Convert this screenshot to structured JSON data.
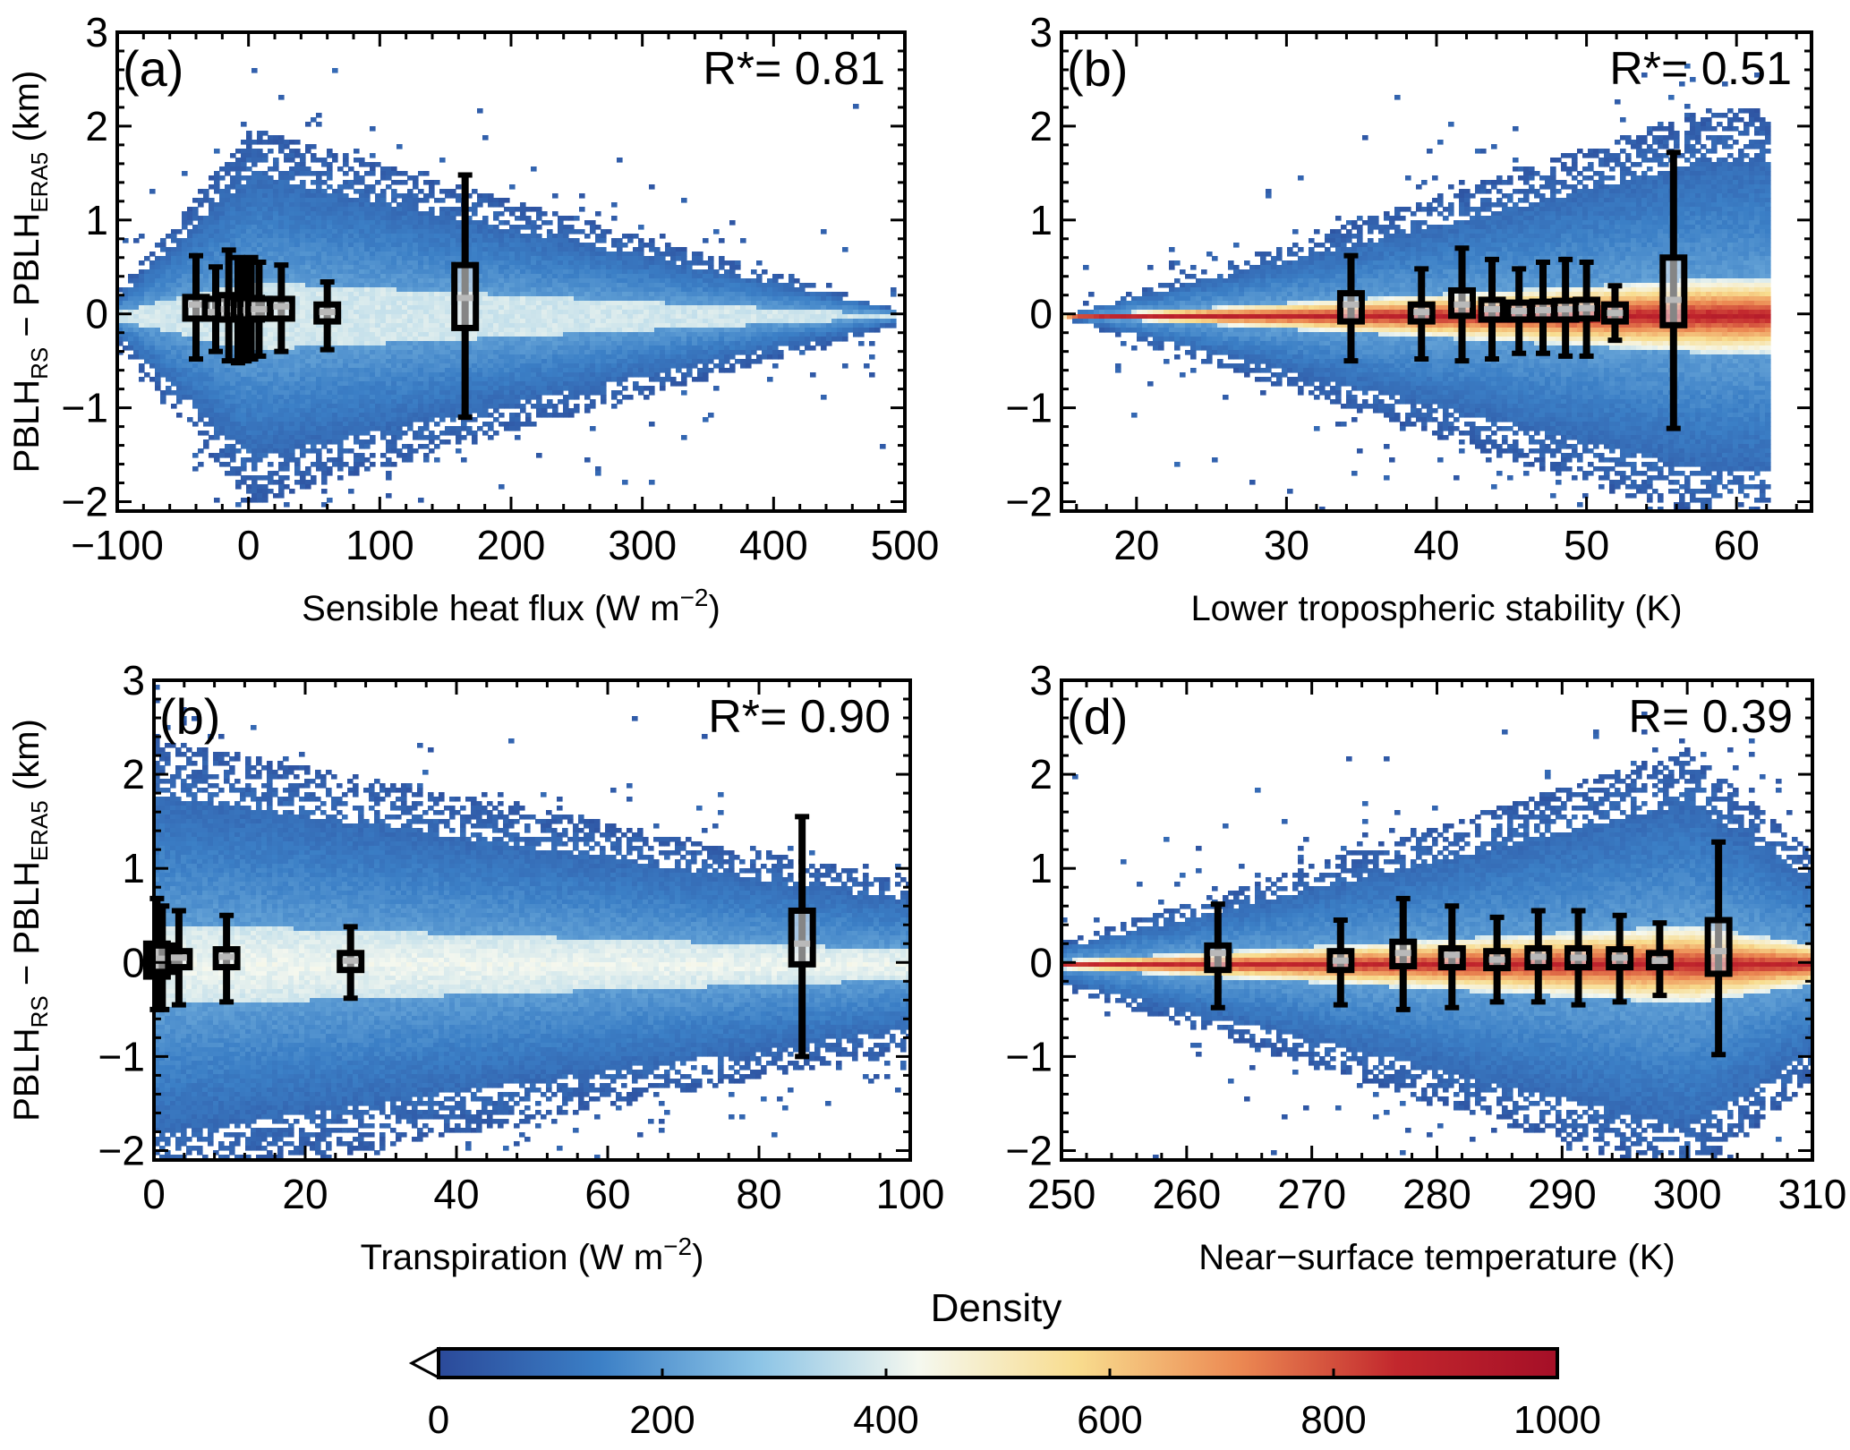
{
  "colorbar": {
    "title": "Density",
    "ticks": [
      "0",
      "200",
      "400",
      "600",
      "800",
      "1000"
    ],
    "range": [
      0,
      1000
    ],
    "extend": "min",
    "colors": [
      "#2b4a9a",
      "#3b7fc6",
      "#8cc4e6",
      "#f5f8ef",
      "#f8dc8e",
      "#ec8a53",
      "#c2272d",
      "#a50f27"
    ]
  },
  "box_style": {
    "box_color": "#000000",
    "median_color": "#b9b9b9"
  },
  "chart_data": [
    {
      "type": "heatmap",
      "panel": "(a)",
      "stat_label": "R*= 0.81",
      "xlabel_main": "Sensible heat flux (W m",
      "xlabel_sup": "−2",
      "xlabel_end": ")",
      "ylabel": {
        "pre": "PBLH",
        "sub1": "RS",
        "mid": " − PBLH",
        "sub2": "ERA5",
        "post": " (km)"
      },
      "xlim": [
        -100,
        500
      ],
      "ylim": [
        -2.1,
        3
      ],
      "xticks": [
        -100,
        0,
        100,
        200,
        300,
        400,
        500
      ],
      "xticklabels": [
        "−100",
        "0",
        "100",
        "200",
        "300",
        "400",
        "500"
      ],
      "yticks": [
        -2,
        -1,
        0,
        1,
        2,
        3
      ],
      "yticklabels": [
        "−2",
        "−1",
        "0",
        "1",
        "2",
        "3"
      ],
      "density_cloud": {
        "x_start": -100,
        "x_end": 490,
        "x_peak_spread": 0,
        "spread_start": 0.3,
        "spread_peak": 2.0,
        "spread_end": 0.1,
        "core_level": 380
      },
      "boxes": [
        {
          "x": -40,
          "q1": -0.05,
          "median": 0.1,
          "q3": 0.18,
          "whisker_low": -0.48,
          "whisker_high": 0.62
        },
        {
          "x": -25,
          "q1": -0.05,
          "median": 0.02,
          "q3": 0.16,
          "whisker_low": -0.4,
          "whisker_high": 0.5
        },
        {
          "x": -15,
          "q1": -0.06,
          "median": 0.05,
          "q3": 0.2,
          "whisker_low": -0.5,
          "whisker_high": 0.68
        },
        {
          "x": -8,
          "q1": -0.06,
          "median": 0.05,
          "q3": 0.18,
          "whisker_low": -0.52,
          "whisker_high": 0.6
        },
        {
          "x": -3,
          "q1": -0.05,
          "median": 0.03,
          "q3": 0.16,
          "whisker_low": -0.5,
          "whisker_high": 0.55
        },
        {
          "x": 2,
          "q1": -0.06,
          "median": 0.04,
          "q3": 0.17,
          "whisker_low": -0.48,
          "whisker_high": 0.6
        },
        {
          "x": 8,
          "q1": -0.05,
          "median": 0.05,
          "q3": 0.16,
          "whisker_low": -0.45,
          "whisker_high": 0.55
        },
        {
          "x": 25,
          "q1": -0.05,
          "median": 0.08,
          "q3": 0.16,
          "whisker_low": -0.4,
          "whisker_high": 0.52
        },
        {
          "x": 60,
          "q1": -0.08,
          "median": 0.02,
          "q3": 0.1,
          "whisker_low": -0.38,
          "whisker_high": 0.34
        },
        {
          "x": 165,
          "q1": -0.15,
          "median": 0.17,
          "q3": 0.52,
          "whisker_low": -1.1,
          "whisker_high": 1.48
        }
      ]
    },
    {
      "type": "heatmap",
      "panel": "(b)",
      "stat_label": "R*= 0.51",
      "xlabel_main": "Lower tropospheric stability (K)",
      "xlabel_sup": "",
      "xlabel_end": "",
      "ylabel": null,
      "xlim": [
        15,
        65
      ],
      "ylim": [
        -2.1,
        3
      ],
      "xticks": [
        20,
        30,
        40,
        50,
        60
      ],
      "xticklabels": [
        "20",
        "30",
        "40",
        "50",
        "60"
      ],
      "yticks": [
        -2,
        -1,
        0,
        1,
        2,
        3
      ],
      "yticklabels": [
        "−2",
        "−1",
        "0",
        "1",
        "2",
        "3"
      ],
      "density_cloud": {
        "x_start": 15,
        "x_end": 62,
        "x_peak_spread": 58,
        "spread_start": 0.02,
        "spread_peak": 2.2,
        "spread_end": 2.2,
        "core_level": 900
      },
      "boxes": [
        {
          "x": 34.3,
          "q1": -0.08,
          "median": 0.1,
          "q3": 0.22,
          "whisker_low": -0.5,
          "whisker_high": 0.62
        },
        {
          "x": 39,
          "q1": -0.08,
          "median": 0.02,
          "q3": 0.1,
          "whisker_low": -0.48,
          "whisker_high": 0.48
        },
        {
          "x": 41.7,
          "q1": -0.02,
          "median": 0.1,
          "q3": 0.25,
          "whisker_low": -0.5,
          "whisker_high": 0.7
        },
        {
          "x": 43.7,
          "q1": -0.06,
          "median": 0.05,
          "q3": 0.15,
          "whisker_low": -0.48,
          "whisker_high": 0.58
        },
        {
          "x": 45.5,
          "q1": -0.06,
          "median": 0.03,
          "q3": 0.12,
          "whisker_low": -0.42,
          "whisker_high": 0.48
        },
        {
          "x": 47.1,
          "q1": -0.06,
          "median": 0.04,
          "q3": 0.13,
          "whisker_low": -0.42,
          "whisker_high": 0.55
        },
        {
          "x": 48.6,
          "q1": -0.06,
          "median": 0.05,
          "q3": 0.14,
          "whisker_low": -0.45,
          "whisker_high": 0.58
        },
        {
          "x": 50,
          "q1": -0.05,
          "median": 0.06,
          "q3": 0.15,
          "whisker_low": -0.45,
          "whisker_high": 0.55
        },
        {
          "x": 51.9,
          "q1": -0.08,
          "median": 0.01,
          "q3": 0.1,
          "whisker_low": -0.28,
          "whisker_high": 0.3
        },
        {
          "x": 55.8,
          "q1": -0.12,
          "median": 0.15,
          "q3": 0.6,
          "whisker_low": -1.22,
          "whisker_high": 1.72
        }
      ]
    },
    {
      "type": "heatmap",
      "panel": "(b)",
      "stat_label": "R*= 0.90",
      "xlabel_main": "Transpiration (W m",
      "xlabel_sup": "−2",
      "xlabel_end": ")",
      "ylabel": {
        "pre": "PBLH",
        "sub1": "RS",
        "mid": " − PBLH",
        "sub2": "ERA5",
        "post": " (km)"
      },
      "xlim": [
        0,
        100
      ],
      "ylim": [
        -2.1,
        3
      ],
      "xticks": [
        0,
        20,
        40,
        60,
        80,
        100
      ],
      "xticklabels": [
        "0",
        "20",
        "40",
        "60",
        "80",
        "100"
      ],
      "yticks": [
        -2,
        -1,
        0,
        1,
        2,
        3
      ],
      "yticklabels": [
        "−2",
        "−1",
        "0",
        "1",
        "2",
        "3"
      ],
      "density_cloud": {
        "x_start": 0,
        "x_end": 100,
        "x_peak_spread": 0,
        "spread_start": 2.4,
        "spread_peak": 2.4,
        "spread_end": 0.9,
        "core_level": 420
      },
      "boxes": [
        {
          "x": 0.4,
          "q1": -0.15,
          "median": 0.03,
          "q3": 0.2,
          "whisker_low": -0.5,
          "whisker_high": 0.68
        },
        {
          "x": 1.1,
          "q1": -0.1,
          "median": 0.04,
          "q3": 0.18,
          "whisker_low": -0.5,
          "whisker_high": 0.6
        },
        {
          "x": 3.3,
          "q1": -0.05,
          "median": 0.05,
          "q3": 0.12,
          "whisker_low": -0.45,
          "whisker_high": 0.55
        },
        {
          "x": 9.6,
          "q1": -0.05,
          "median": 0.06,
          "q3": 0.14,
          "whisker_low": -0.42,
          "whisker_high": 0.5
        },
        {
          "x": 26,
          "q1": -0.08,
          "median": 0.02,
          "q3": 0.1,
          "whisker_low": -0.38,
          "whisker_high": 0.38
        },
        {
          "x": 85.7,
          "q1": -0.02,
          "median": 0.2,
          "q3": 0.55,
          "whisker_low": -1.0,
          "whisker_high": 1.55
        }
      ]
    },
    {
      "type": "heatmap",
      "panel": "(d)",
      "stat_label": "R= 0.39",
      "xlabel_main": "Near−surface temperature (K)",
      "xlabel_sup": "",
      "xlabel_end": "",
      "ylabel": null,
      "xlim": [
        250,
        310
      ],
      "ylim": [
        -2.1,
        3
      ],
      "xticks": [
        250,
        260,
        270,
        280,
        290,
        300,
        310
      ],
      "xticklabels": [
        "250",
        "260",
        "270",
        "280",
        "290",
        "300",
        "310"
      ],
      "yticks": [
        -2,
        -1,
        0,
        1,
        2,
        3
      ],
      "yticklabels": [
        "−2",
        "−1",
        "0",
        "1",
        "2",
        "3"
      ],
      "density_cloud": {
        "x_start": 250,
        "x_end": 310,
        "x_peak_spread": 300,
        "spread_start": 0.25,
        "spread_peak": 2.3,
        "spread_end": 1.2,
        "core_level": 880
      },
      "boxes": [
        {
          "x": 262.5,
          "q1": -0.08,
          "median": 0.1,
          "q3": 0.18,
          "whisker_low": -0.48,
          "whisker_high": 0.62
        },
        {
          "x": 272.3,
          "q1": -0.08,
          "median": 0.02,
          "q3": 0.12,
          "whisker_low": -0.45,
          "whisker_high": 0.45
        },
        {
          "x": 277.3,
          "q1": -0.04,
          "median": 0.1,
          "q3": 0.22,
          "whisker_low": -0.5,
          "whisker_high": 0.68
        },
        {
          "x": 281.2,
          "q1": -0.05,
          "median": 0.08,
          "q3": 0.15,
          "whisker_low": -0.48,
          "whisker_high": 0.6
        },
        {
          "x": 284.8,
          "q1": -0.06,
          "median": 0.03,
          "q3": 0.12,
          "whisker_low": -0.42,
          "whisker_high": 0.48
        },
        {
          "x": 288.1,
          "q1": -0.05,
          "median": 0.06,
          "q3": 0.15,
          "whisker_low": -0.42,
          "whisker_high": 0.55
        },
        {
          "x": 291.3,
          "q1": -0.05,
          "median": 0.05,
          "q3": 0.15,
          "whisker_low": -0.45,
          "whisker_high": 0.55
        },
        {
          "x": 294.6,
          "q1": -0.05,
          "median": 0.05,
          "q3": 0.14,
          "whisker_low": -0.42,
          "whisker_high": 0.5
        },
        {
          "x": 297.8,
          "q1": -0.05,
          "median": 0.02,
          "q3": 0.1,
          "whisker_low": -0.35,
          "whisker_high": 0.42
        },
        {
          "x": 302.5,
          "q1": -0.12,
          "median": 0.12,
          "q3": 0.45,
          "whisker_low": -0.98,
          "whisker_high": 1.28
        }
      ]
    }
  ]
}
